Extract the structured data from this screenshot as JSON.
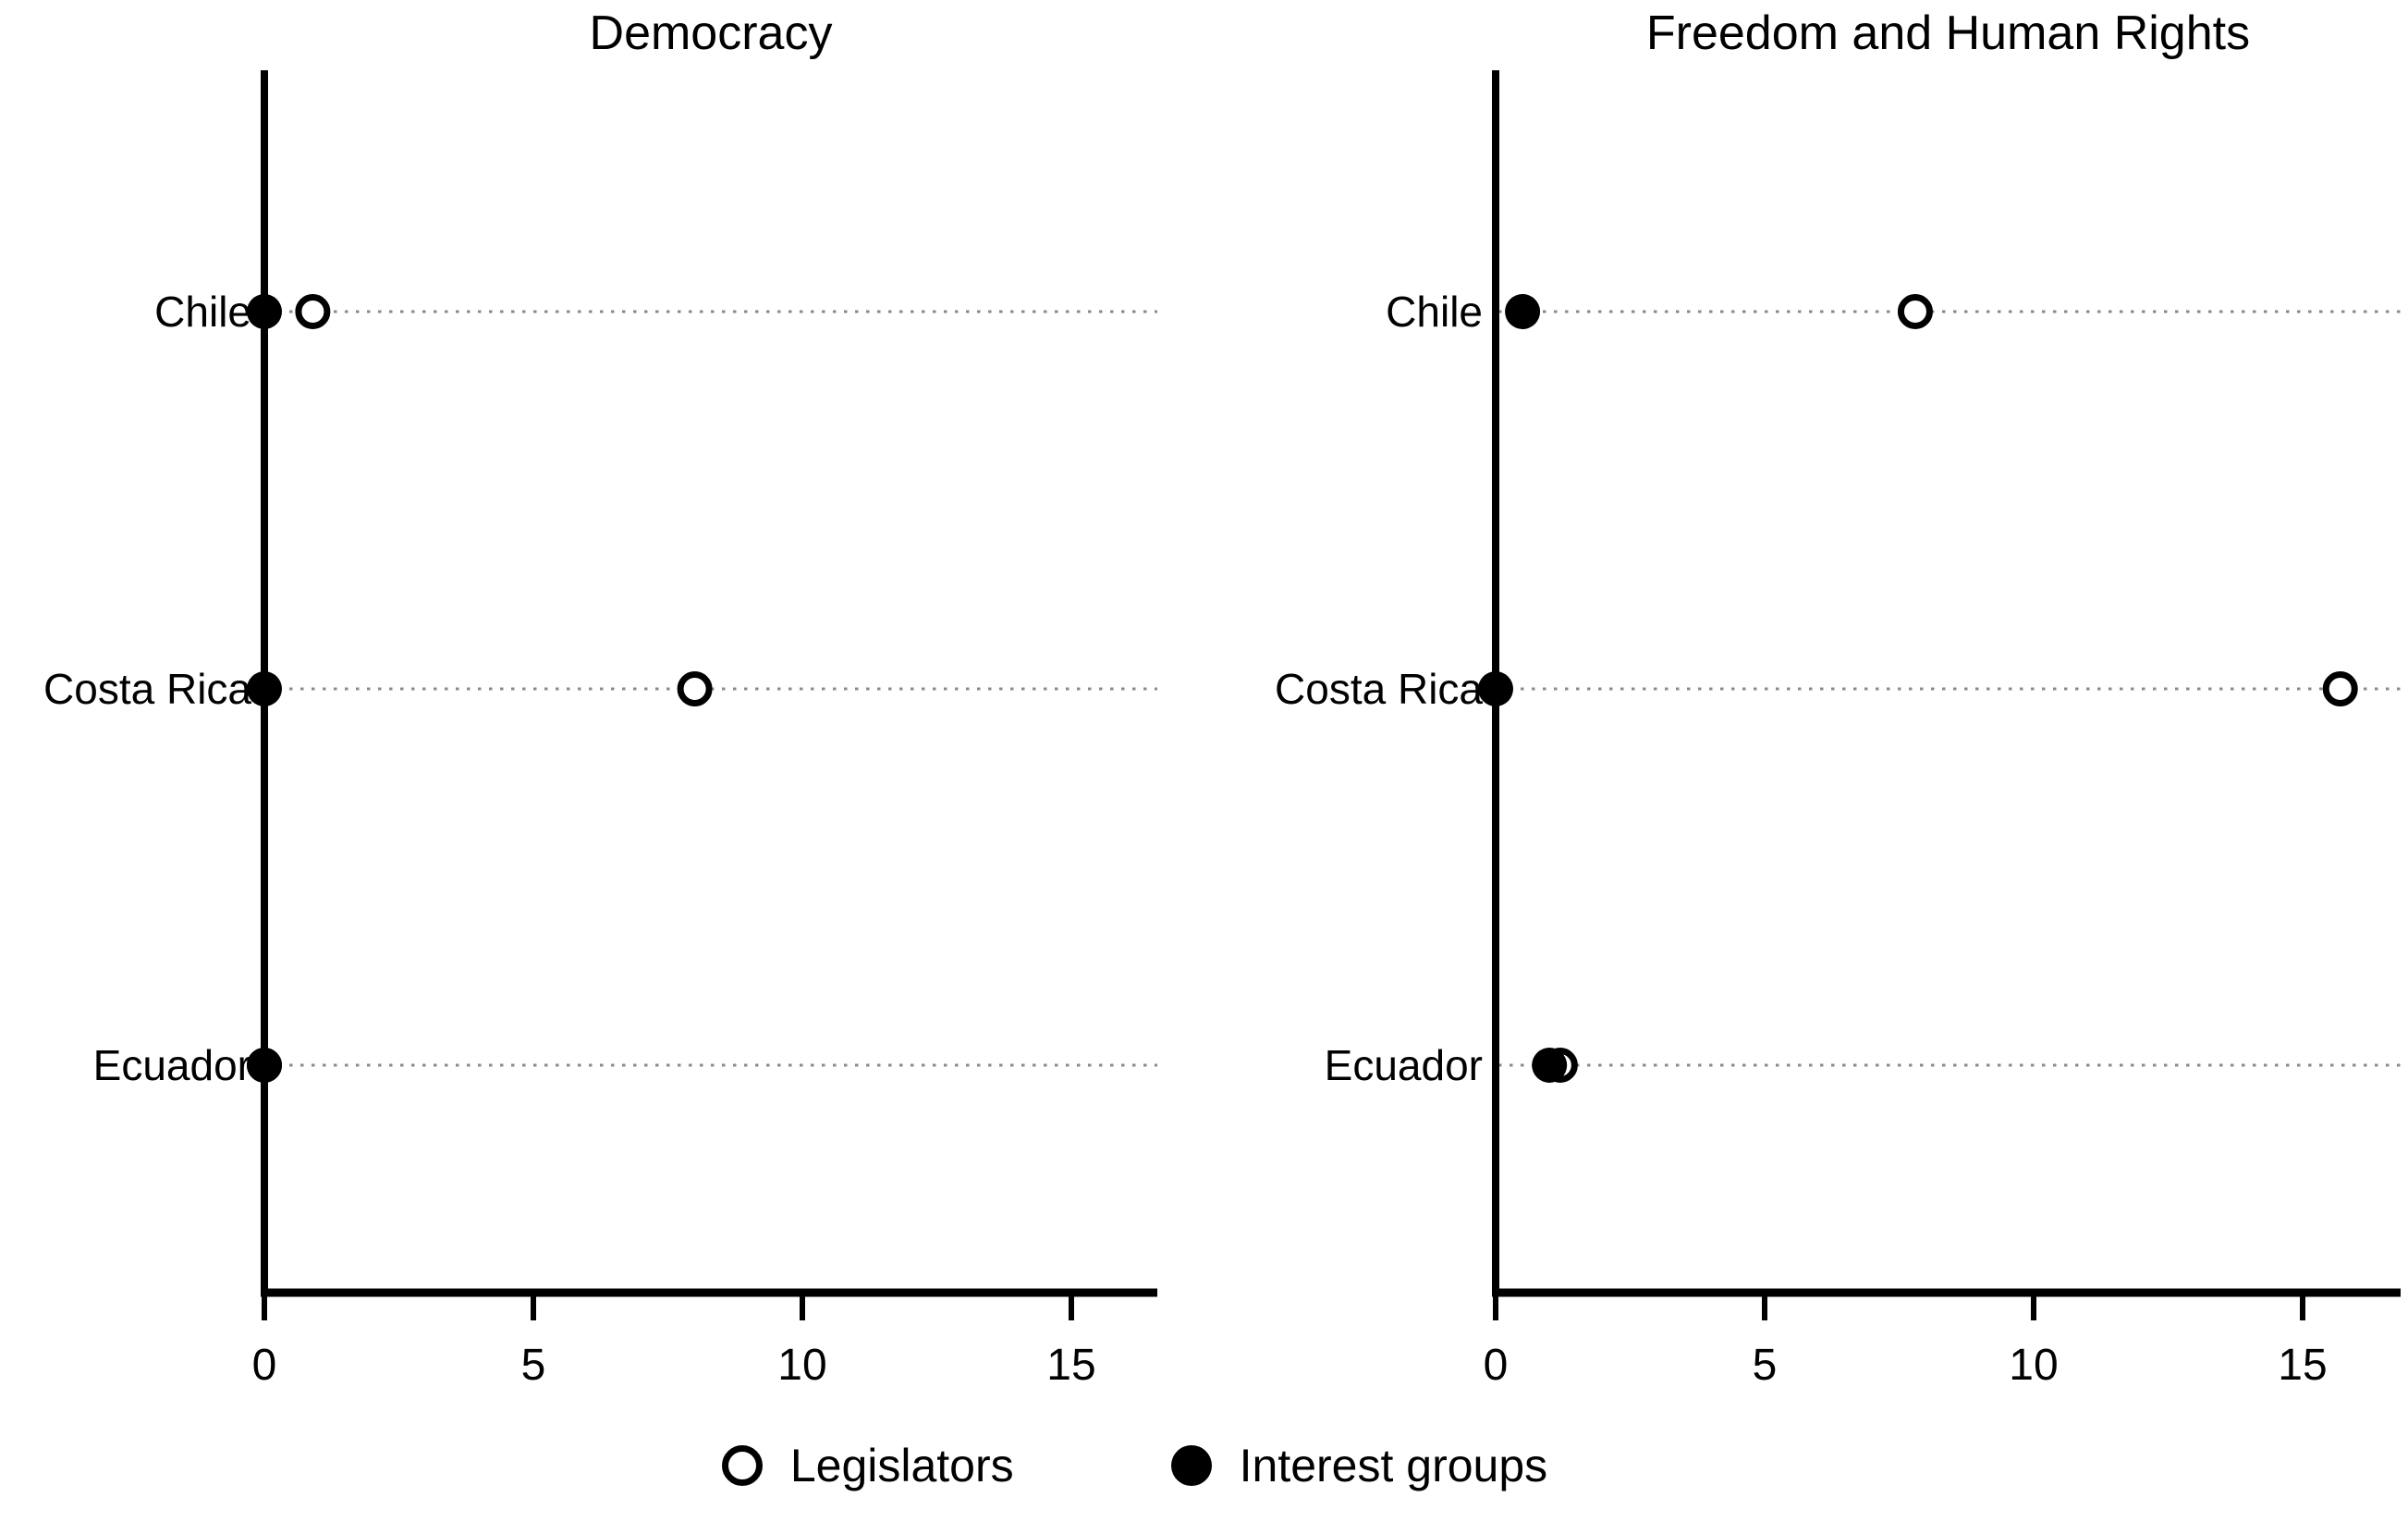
{
  "figure": {
    "background": "#ffffff",
    "ink": "#000000",
    "guide_color": "#8a8a8a"
  },
  "chart_data": [
    {
      "type": "scatter",
      "variant": "horizontal-dot-plot",
      "title": "Democracy",
      "categories": [
        "Chile",
        "Costa Rica",
        "Ecuador"
      ],
      "series": [
        {
          "name": "Legislators",
          "marker": "open",
          "values": [
            0.9,
            8.0,
            0.0
          ]
        },
        {
          "name": "Interest groups",
          "marker": "filled",
          "values": [
            0.0,
            0.0,
            0.0
          ]
        }
      ],
      "xticks": [
        0,
        5,
        10,
        15
      ],
      "xlim": [
        0,
        16.6
      ],
      "grid": "dotted-horizontal-row-guides",
      "legend_position": "bottom-shared"
    },
    {
      "type": "scatter",
      "variant": "horizontal-dot-plot",
      "title": "Freedom and Human Rights",
      "categories": [
        "Chile",
        "Costa Rica",
        "Ecuador"
      ],
      "series": [
        {
          "name": "Legislators",
          "marker": "open",
          "values": [
            7.8,
            15.7,
            1.2
          ]
        },
        {
          "name": "Interest groups",
          "marker": "filled",
          "values": [
            0.5,
            0.0,
            1.0
          ]
        }
      ],
      "xticks": [
        0,
        5,
        10,
        15
      ],
      "xlim": [
        0,
        16.8
      ],
      "grid": "dotted-horizontal-row-guides",
      "legend_position": "bottom-shared"
    }
  ],
  "legend": {
    "items": [
      {
        "label": "Legislators",
        "marker": "open"
      },
      {
        "label": "Interest groups",
        "marker": "filled"
      }
    ]
  }
}
